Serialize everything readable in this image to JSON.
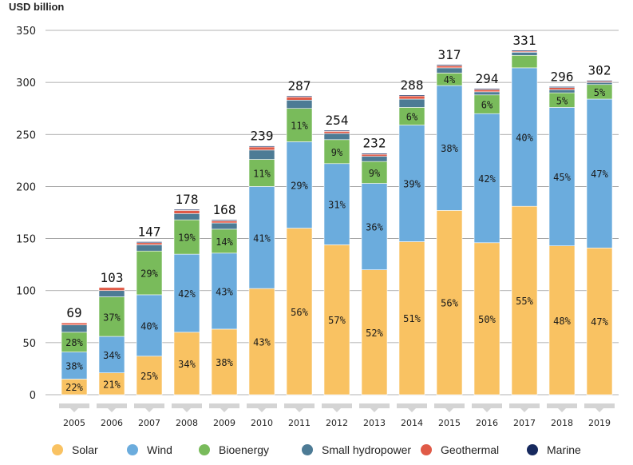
{
  "chart_data": {
    "type": "bar",
    "stacked": true,
    "ylabel": "USD billion",
    "ylim": [
      0,
      350
    ],
    "yticks": [
      0,
      50,
      100,
      150,
      200,
      250,
      300,
      350
    ],
    "grid": true,
    "legend_position": "bottom",
    "categories": [
      "2005",
      "2006",
      "2007",
      "2008",
      "2009",
      "2010",
      "2011",
      "2012",
      "2013",
      "2014",
      "2015",
      "2016",
      "2017",
      "2018",
      "2019"
    ],
    "totals": [
      69,
      103,
      147,
      178,
      168,
      239,
      287,
      254,
      232,
      288,
      317,
      294,
      331,
      296,
      302
    ],
    "series": [
      {
        "name": "Solar",
        "color": "#f9c262",
        "values": [
          15,
          21,
          37,
          60,
          63,
          102,
          160,
          144,
          120,
          147,
          177,
          146,
          181,
          143,
          141
        ],
        "labels": [
          "22%",
          "21%",
          "25%",
          "34%",
          "38%",
          "43%",
          "56%",
          "57%",
          "52%",
          "51%",
          "56%",
          "50%",
          "55%",
          "48%",
          "47%"
        ]
      },
      {
        "name": "Wind",
        "color": "#6bacdd",
        "values": [
          26,
          35,
          59,
          75,
          73,
          98,
          83,
          78,
          83,
          112,
          120,
          124,
          133,
          133,
          143
        ],
        "labels": [
          "38%",
          "34%",
          "40%",
          "42%",
          "43%",
          "41%",
          "29%",
          "31%",
          "36%",
          "39%",
          "38%",
          "42%",
          "40%",
          "45%",
          "47%"
        ]
      },
      {
        "name": "Bioenergy",
        "color": "#79bb5b",
        "values": [
          19,
          38,
          42,
          33,
          23,
          26,
          32,
          23,
          21,
          17,
          12,
          18,
          12,
          14,
          14
        ],
        "labels": [
          "28%",
          "37%",
          "29%",
          "19%",
          "14%",
          "11%",
          "11%",
          "9%",
          "9%",
          "6%",
          "4%",
          "6%",
          "",
          "5%",
          "5%"
        ]
      },
      {
        "name": "Small hydropower",
        "color": "#4d7b95",
        "values": [
          7,
          6,
          6,
          6,
          6,
          9,
          8,
          6,
          5,
          8,
          5,
          3,
          3,
          3,
          2
        ],
        "labels": [
          "",
          "",
          "",
          "",
          "",
          "",
          "",
          "",
          "",
          "",
          "",
          "",
          "",
          "",
          ""
        ]
      },
      {
        "name": "Geothermal",
        "color": "#e05a47",
        "values": [
          2,
          3,
          2,
          3,
          2,
          3,
          3,
          2,
          2,
          3,
          2,
          2,
          1,
          2,
          1
        ],
        "labels": [
          "",
          "",
          "",
          "",
          "",
          "",
          "",
          "",
          "",
          "",
          "",
          "",
          "",
          "",
          ""
        ]
      },
      {
        "name": "Marine",
        "color": "#16295e",
        "values": [
          0,
          0,
          1,
          1,
          1,
          1,
          1,
          1,
          1,
          1,
          1,
          1,
          1,
          1,
          1
        ],
        "labels": [
          "",
          "",
          "",
          "",
          "",
          "",
          "",
          "",
          "",
          "",
          "",
          "",
          "",
          "",
          ""
        ]
      }
    ]
  }
}
